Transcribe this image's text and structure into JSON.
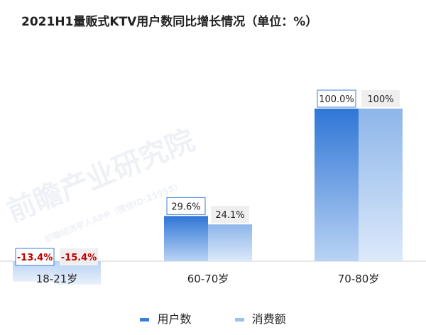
{
  "chart_data": {
    "type": "bar",
    "title": "2021H1量贩式KTV用户数同比增长情况（单位：%）",
    "xlabel": "",
    "ylabel": "",
    "categories": [
      "18-21岁",
      "60-70岁",
      "70-80岁"
    ],
    "series": [
      {
        "name": "用户数",
        "values": [
          -13.4,
          29.6,
          100.0
        ],
        "labels": [
          "-13.4%",
          "29.6%",
          "100.0%"
        ],
        "color": "#3a7fd8"
      },
      {
        "name": "消费额",
        "values": [
          -15.4,
          24.1,
          100
        ],
        "labels": [
          "-15.4%",
          "24.1%",
          "100%"
        ],
        "color": "#9cc1ee"
      }
    ],
    "legend_position": "bottom",
    "grid": false,
    "negative_label_color": "#c00000"
  },
  "watermark": {
    "brand": "前瞻产业研究院",
    "sub": "前瞻经济学人APP（微信ID:23958）"
  }
}
